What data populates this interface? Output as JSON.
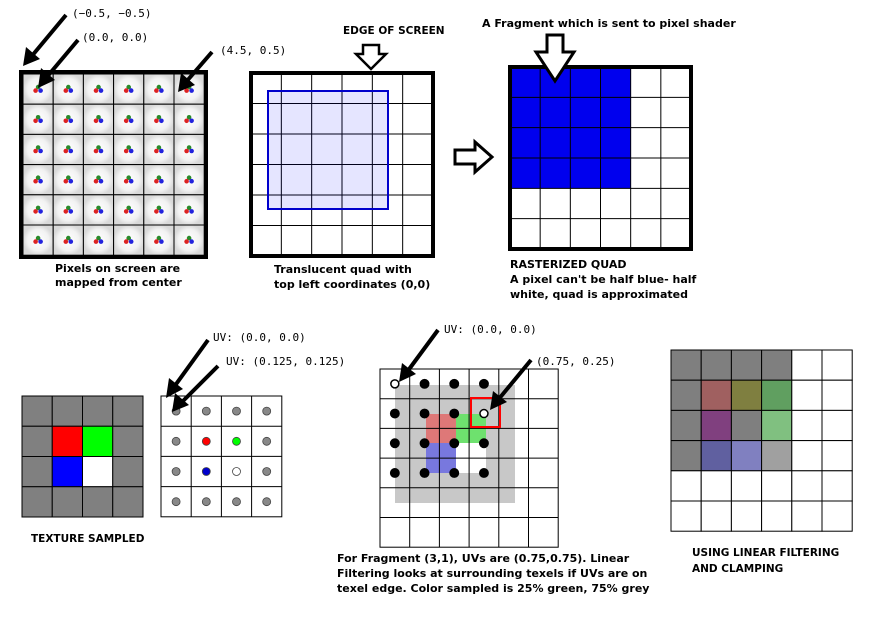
{
  "panel1": {
    "coord_a": "(−0.5, −0.5)",
    "coord_b": "(0.0, 0.0)",
    "coord_c": "(4.5, 0.5)",
    "caption": [
      "Pixels on screen are",
      "mapped from center"
    ]
  },
  "panel2": {
    "heading": "EDGE OF SCREEN",
    "caption": [
      "Translucent quad with",
      "top left coordinates (0,0)"
    ]
  },
  "panel3": {
    "heading": "A Fragment which is sent to pixel shader",
    "caption_title": "RASTERIZED QUAD",
    "caption": [
      "A pixel can't be half blue- half",
      "white, quad is approximated"
    ]
  },
  "texture": {
    "caption": "TEXTURE SAMPLED",
    "uv_a": "UV: (0.0, 0.0)",
    "uv_b": "UV: (0.125, 0.125)"
  },
  "sampling": {
    "uv_a": "UV: (0.0, 0.0)",
    "uv_b": "(0.75, 0.25)",
    "caption": [
      "For Fragment (3,1), UVs are (0.75,0.75). Linear",
      "Filtering looks at surrounding texels if UVs are on",
      "texel edge. Color sampled is 25% green, 75% grey"
    ]
  },
  "filtered": {
    "caption": [
      "USING LINEAR FILTERING",
      "AND CLAMPING"
    ]
  },
  "colors": {
    "grid_line": "#000000",
    "texel_grey": "#808080",
    "texel_red": "#ff0000",
    "texel_green": "#00ff00",
    "texel_blue": "#0000ff",
    "quad_fill": "#0000ee",
    "highlight": "#ff0000"
  }
}
